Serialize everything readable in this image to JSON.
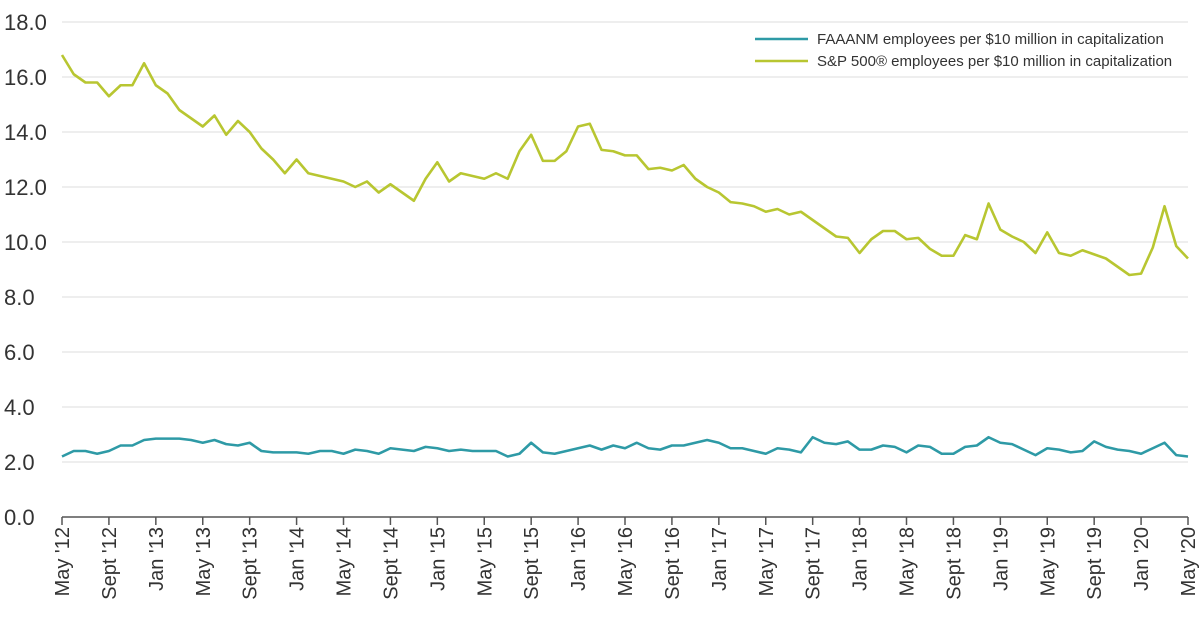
{
  "chart_data": {
    "type": "line",
    "ylim": [
      0,
      18
    ],
    "yticks": [
      "0.0",
      "2.0",
      "4.0",
      "6.0",
      "8.0",
      "10.0",
      "12.0",
      "14.0",
      "16.0",
      "18.0"
    ],
    "xtick_labels": [
      "May '12",
      "Sept '12",
      "Jan '13",
      "May '13",
      "Sept '13",
      "Jan '14",
      "May '14",
      "Sept '14",
      "Jan '15",
      "May '15",
      "Sept '15",
      "Jan '16",
      "May '16",
      "Sept '16",
      "Jan '17",
      "May '17",
      "Sept '17",
      "Jan '18",
      "May '18",
      "Sept '18",
      "Jan '19",
      "May '19",
      "Sept '19",
      "Jan '20",
      "May '20"
    ],
    "grid": true,
    "legend_position": "top-right",
    "colors": {
      "faaanm": "#2e9aa6",
      "sp500": "#b8c631"
    },
    "series": [
      {
        "name": "FAAANM employees per $10 million in capitalization",
        "values": [
          2.2,
          2.4,
          2.4,
          2.3,
          2.4,
          2.6,
          2.6,
          2.8,
          2.85,
          2.85,
          2.85,
          2.8,
          2.7,
          2.8,
          2.65,
          2.6,
          2.7,
          2.4,
          2.35,
          2.35,
          2.35,
          2.3,
          2.4,
          2.4,
          2.3,
          2.45,
          2.4,
          2.3,
          2.5,
          2.45,
          2.4,
          2.55,
          2.5,
          2.4,
          2.45,
          2.4,
          2.4,
          2.4,
          2.2,
          2.3,
          2.7,
          2.35,
          2.3,
          2.4,
          2.5,
          2.6,
          2.45,
          2.6,
          2.5,
          2.7,
          2.5,
          2.45,
          2.6,
          2.6,
          2.7,
          2.8,
          2.7,
          2.5,
          2.5,
          2.4,
          2.3,
          2.5,
          2.45,
          2.35,
          2.9,
          2.7,
          2.65,
          2.75,
          2.45,
          2.45,
          2.6,
          2.55,
          2.35,
          2.6,
          2.55,
          2.3,
          2.3,
          2.55,
          2.6,
          2.9,
          2.7,
          2.65,
          2.45,
          2.25,
          2.5,
          2.45,
          2.35,
          2.4,
          2.75,
          2.55,
          2.45,
          2.4,
          2.3,
          2.5,
          2.7,
          2.25,
          2.2
        ]
      },
      {
        "name": "S&P 500® employees per $10 million in capitalization",
        "values": [
          16.8,
          16.1,
          15.8,
          15.8,
          15.3,
          15.7,
          15.7,
          16.5,
          15.7,
          15.4,
          14.8,
          14.5,
          14.2,
          14.6,
          13.9,
          14.4,
          14.0,
          13.4,
          13.0,
          12.5,
          13.0,
          12.5,
          12.4,
          12.3,
          12.2,
          12.0,
          12.2,
          11.8,
          12.1,
          11.8,
          11.5,
          12.3,
          12.9,
          12.2,
          12.5,
          12.4,
          12.3,
          12.5,
          12.3,
          13.3,
          13.9,
          12.95,
          12.95,
          13.3,
          14.2,
          14.3,
          13.35,
          13.3,
          13.15,
          13.15,
          12.65,
          12.7,
          12.6,
          12.8,
          12.3,
          12.0,
          11.8,
          11.45,
          11.4,
          11.3,
          11.1,
          11.2,
          11.0,
          11.1,
          10.8,
          10.5,
          10.2,
          10.15,
          9.6,
          10.1,
          10.4,
          10.4,
          10.1,
          10.15,
          9.75,
          9.5,
          9.5,
          10.25,
          10.1,
          11.4,
          10.45,
          10.2,
          10.0,
          9.6,
          10.35,
          9.6,
          9.5,
          9.7,
          9.55,
          9.4,
          9.1,
          8.8,
          8.85,
          9.8,
          11.3,
          9.85,
          9.4
        ]
      }
    ]
  }
}
